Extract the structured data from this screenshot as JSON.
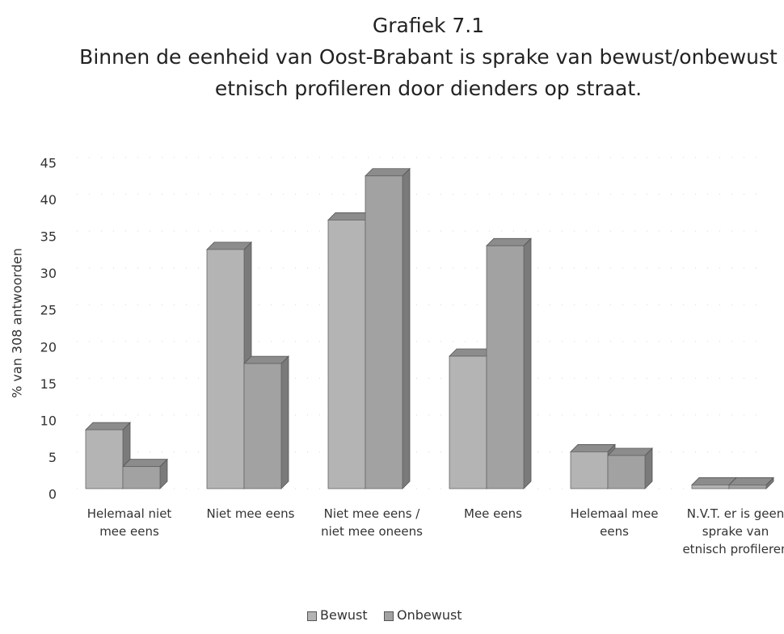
{
  "chart_data": {
    "type": "bar3d",
    "title": "Grafiek 7.1",
    "subtitle": "Binnen de eenheid van Oost-Brabant is sprake van bewust/onbewust etnisch profileren door dienders op straat.",
    "y_label": "% van 308 antwoorden",
    "categories": [
      "Helemaal niet mee eens",
      "Niet mee eens",
      "Niet mee eens / niet mee oneens",
      "Mee eens",
      "Helemaal mee eens",
      "N.V.T. er is geen sprake van etnisch profileren"
    ],
    "series": [
      {
        "name": "Bewust",
        "color": "#b4b4b4",
        "values": [
          8,
          32.5,
          36.5,
          18,
          5,
          0.5
        ]
      },
      {
        "name": "Onbewust",
        "color": "#a2a2a2",
        "values": [
          3,
          17,
          42.5,
          33,
          4.5,
          0.5
        ]
      }
    ],
    "ylim": [
      0,
      45
    ],
    "yticks": [
      0,
      5,
      10,
      15,
      20,
      25,
      30,
      35,
      40,
      45
    ],
    "legend": "bottom"
  }
}
